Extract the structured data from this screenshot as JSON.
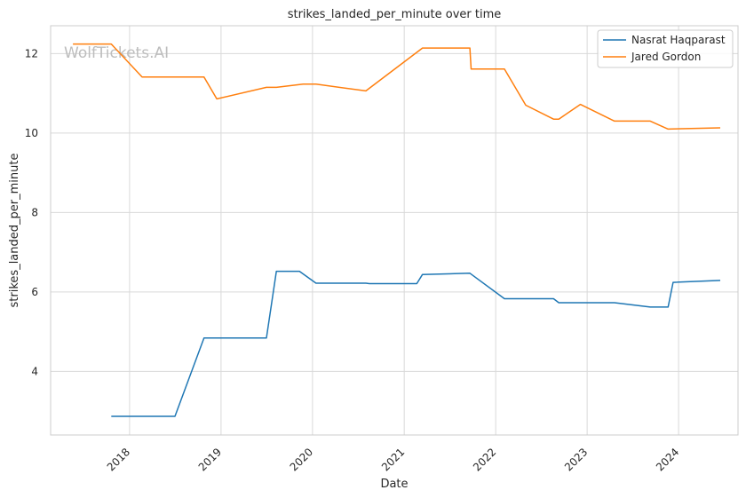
{
  "chart_data": {
    "type": "line",
    "title": "strikes_landed_per_minute over time",
    "xlabel": "Date",
    "ylabel": "strikes_landed_per_minute",
    "watermark": "WolfTickets.AI",
    "x_ticks": [
      "2018",
      "2019",
      "2020",
      "2021",
      "2022",
      "2023",
      "2024"
    ],
    "y_ticks": [
      "4",
      "6",
      "8",
      "10",
      "12"
    ],
    "xlim": [
      "2017-02-20",
      "2024-08-25"
    ],
    "ylim": [
      2.4,
      12.7
    ],
    "grid": true,
    "legend_position": "top-right",
    "series": [
      {
        "name": "Nasrat Haqparast",
        "color": "#1f77b4",
        "points": [
          [
            "2017-10-20",
            2.87
          ],
          [
            "2018-07-01",
            2.87
          ],
          [
            "2018-10-25",
            4.84
          ],
          [
            "2019-07-01",
            4.84
          ],
          [
            "2019-08-10",
            6.52
          ],
          [
            "2019-11-10",
            6.52
          ],
          [
            "2020-01-15",
            6.22
          ],
          [
            "2020-08-01",
            6.22
          ],
          [
            "2020-08-15",
            6.21
          ],
          [
            "2021-02-20",
            6.21
          ],
          [
            "2021-03-15",
            6.44
          ],
          [
            "2021-09-20",
            6.47
          ],
          [
            "2022-02-05",
            5.83
          ],
          [
            "2022-08-20",
            5.83
          ],
          [
            "2022-09-10",
            5.73
          ],
          [
            "2023-04-20",
            5.73
          ],
          [
            "2023-09-10",
            5.62
          ],
          [
            "2023-11-20",
            5.62
          ],
          [
            "2023-12-10",
            6.24
          ],
          [
            "2024-06-15",
            6.29
          ]
        ]
      },
      {
        "name": "Jared Gordon",
        "color": "#ff7f0e",
        "points": [
          [
            "2017-05-20",
            12.24
          ],
          [
            "2017-10-20",
            12.24
          ],
          [
            "2018-02-20",
            11.41
          ],
          [
            "2018-10-25",
            11.41
          ],
          [
            "2018-12-15",
            10.86
          ],
          [
            "2019-07-01",
            11.15
          ],
          [
            "2019-08-10",
            11.15
          ],
          [
            "2019-11-25",
            11.23
          ],
          [
            "2020-01-15",
            11.23
          ],
          [
            "2020-08-01",
            11.06
          ],
          [
            "2021-03-15",
            12.14
          ],
          [
            "2021-09-20",
            12.14
          ],
          [
            "2021-09-25",
            11.61
          ],
          [
            "2022-02-05",
            11.61
          ],
          [
            "2022-05-01",
            10.7
          ],
          [
            "2022-08-20",
            10.35
          ],
          [
            "2022-09-10",
            10.35
          ],
          [
            "2022-12-05",
            10.72
          ],
          [
            "2023-04-20",
            10.3
          ],
          [
            "2023-09-10",
            10.3
          ],
          [
            "2023-11-20",
            10.1
          ],
          [
            "2024-06-15",
            10.13
          ]
        ]
      }
    ]
  }
}
